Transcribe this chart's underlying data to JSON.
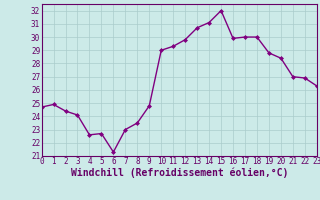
{
  "x": [
    0,
    1,
    2,
    3,
    4,
    5,
    6,
    7,
    8,
    9,
    10,
    11,
    12,
    13,
    14,
    15,
    16,
    17,
    18,
    19,
    20,
    21,
    22,
    23
  ],
  "y": [
    24.7,
    24.9,
    24.4,
    24.1,
    22.6,
    22.7,
    21.3,
    23.0,
    23.5,
    24.8,
    29.0,
    29.3,
    29.8,
    30.7,
    31.1,
    32.0,
    29.9,
    30.0,
    30.0,
    28.8,
    28.4,
    27.0,
    26.9,
    26.3
  ],
  "line_color": "#800080",
  "marker": "D",
  "marker_size": 2.0,
  "bg_color": "#cceae8",
  "grid_color": "#aacccc",
  "xlabel": "Windchill (Refroidissement éolien,°C)",
  "ylim": [
    21,
    32.5
  ],
  "xlim": [
    0,
    23
  ],
  "yticks": [
    21,
    22,
    23,
    24,
    25,
    26,
    27,
    28,
    29,
    30,
    31,
    32
  ],
  "xticks": [
    0,
    1,
    2,
    3,
    4,
    5,
    6,
    7,
    8,
    9,
    10,
    11,
    12,
    13,
    14,
    15,
    16,
    17,
    18,
    19,
    20,
    21,
    22,
    23
  ],
  "tick_label_size": 5.5,
  "xlabel_size": 7.0,
  "line_width": 1.0
}
